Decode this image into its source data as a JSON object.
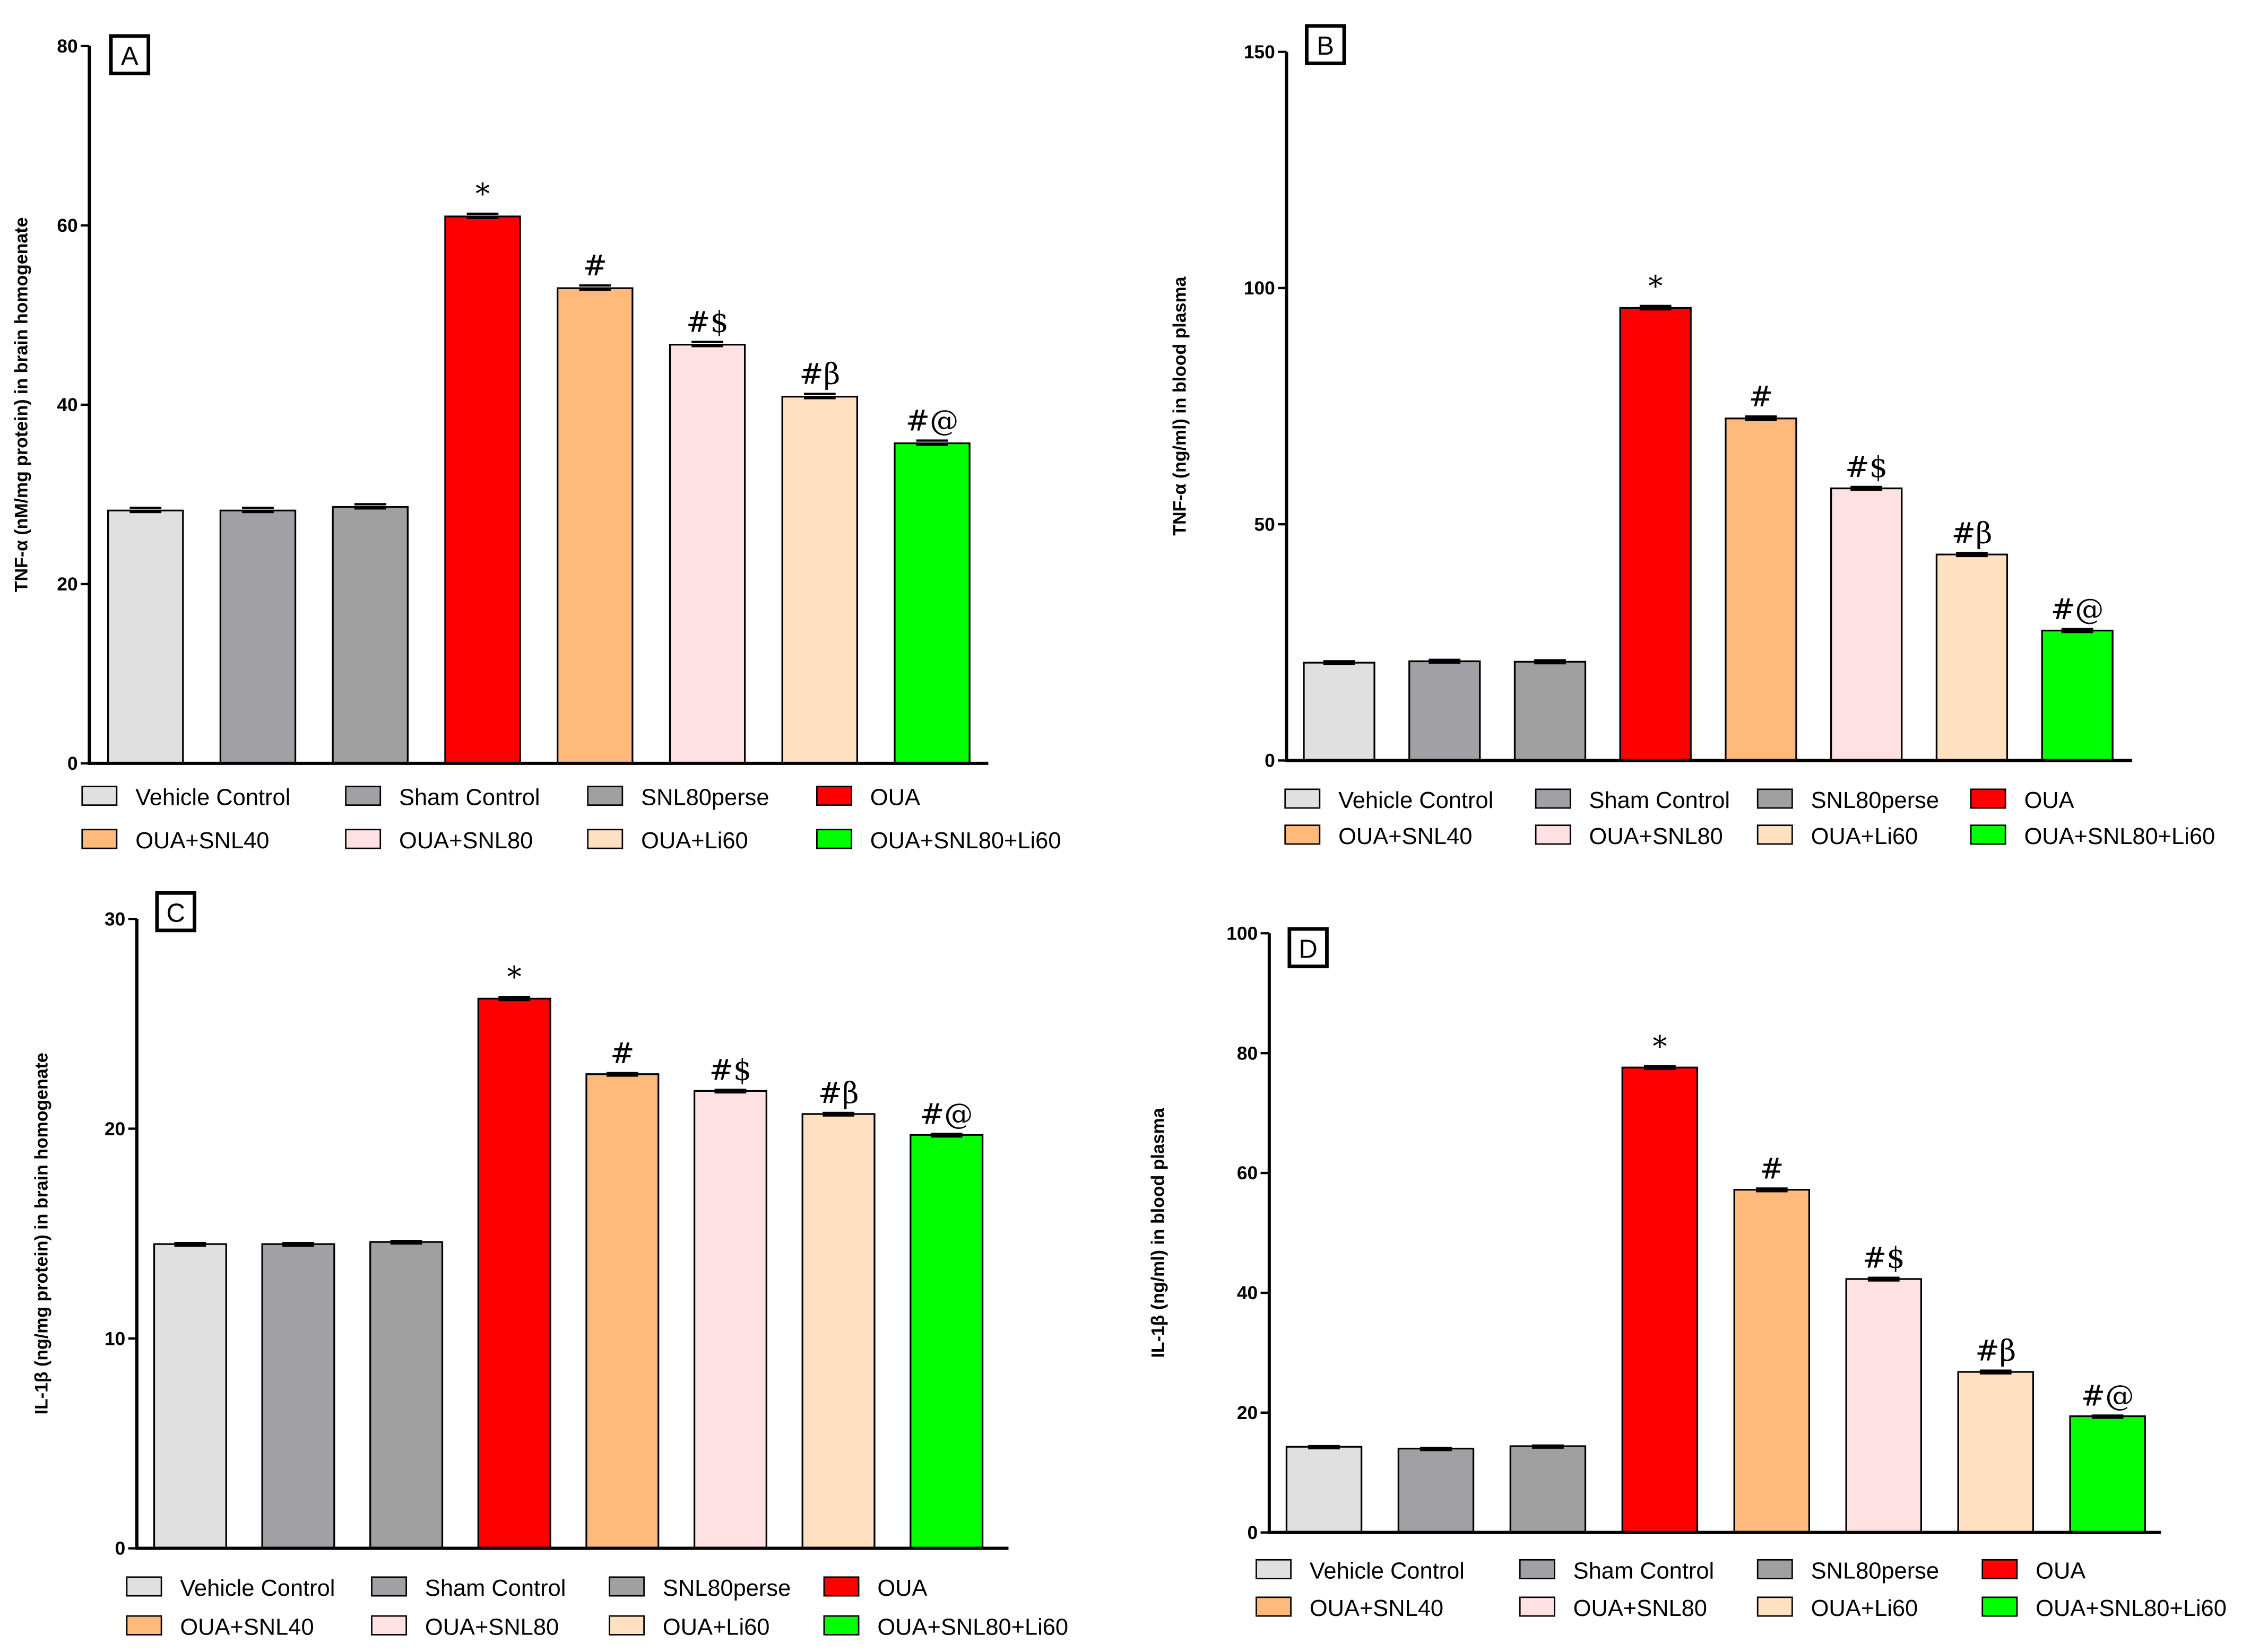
{
  "chart_data": [
    {
      "type": "bar",
      "panel_label": "A",
      "title": "",
      "xlabel": "",
      "ylabel": "TNF-α (nM/mg protein) in brain homogenate",
      "ylim": [
        0,
        80
      ],
      "yticks": [
        "0",
        "20",
        "40",
        "60",
        "80"
      ],
      "ytick_values": [
        0,
        20,
        40,
        60,
        80
      ],
      "categories": [
        "Vehicle Control",
        "Sham Control",
        "SNL80perse",
        "OUA",
        "OUA+SNL40",
        "OUA+SNL80",
        "OUA+Li60",
        "OUA+SNL80+Li60"
      ],
      "values": [
        28.2,
        28.2,
        28.6,
        61.0,
        53.0,
        46.7,
        40.9,
        35.7
      ],
      "errors": [
        0.3,
        0.3,
        0.3,
        0.3,
        0.3,
        0.3,
        0.3,
        0.3
      ],
      "annotations": [
        "",
        "",
        "",
        "*",
        "#",
        "#$",
        "#β",
        "#@"
      ],
      "legend_position": "bottom",
      "grid": false
    },
    {
      "type": "bar",
      "panel_label": "B",
      "title": "",
      "xlabel": "",
      "ylabel": "TNF-α (ng/ml) in blood plasma",
      "ylim": [
        0,
        150
      ],
      "yticks": [
        "0",
        "50",
        "100",
        "150"
      ],
      "ytick_values": [
        0,
        50,
        100,
        150
      ],
      "categories": [
        "Vehicle Control",
        "Sham Control",
        "SNL80perse",
        "OUA",
        "OUA+SNL40",
        "OUA+SNL80",
        "OUA+Li60",
        "OUA+SNL80+Li60"
      ],
      "values": [
        20.7,
        21.0,
        20.9,
        95.8,
        72.4,
        57.6,
        43.6,
        27.5
      ],
      "errors": [
        0.3,
        0.3,
        0.3,
        0.4,
        0.4,
        0.3,
        0.3,
        0.3
      ],
      "annotations": [
        "",
        "",
        "",
        "*",
        "#",
        "#$",
        "#β",
        "#@"
      ],
      "legend_position": "bottom",
      "grid": false
    },
    {
      "type": "bar",
      "panel_label": "C",
      "title": "",
      "xlabel": "",
      "ylabel": "IL-1β (ng/mg protein) in brain homogenate",
      "ylim": [
        0,
        30
      ],
      "yticks": [
        "0",
        "10",
        "20",
        "30"
      ],
      "ytick_values": [
        0,
        10,
        20,
        30
      ],
      "categories": [
        "Vehicle Control",
        "Sham Control",
        "SNL80perse",
        "OUA",
        "OUA+SNL40",
        "OUA+SNL80",
        "OUA+Li60",
        "OUA+SNL80+Li60"
      ],
      "values": [
        14.5,
        14.5,
        14.6,
        26.2,
        22.6,
        21.8,
        20.7,
        19.7
      ],
      "errors": [
        0.05,
        0.05,
        0.05,
        0.08,
        0.05,
        0.05,
        0.05,
        0.05
      ],
      "annotations": [
        "",
        "",
        "",
        "*",
        "#",
        "#$",
        "#β",
        "#@"
      ],
      "legend_position": "bottom",
      "grid": false
    },
    {
      "type": "bar",
      "panel_label": "D",
      "title": "",
      "xlabel": "",
      "ylabel": "IL-1β (ng/ml) in blood plasma",
      "ylim": [
        0,
        100
      ],
      "yticks": [
        "0",
        "20",
        "40",
        "60",
        "80",
        "100"
      ],
      "ytick_values": [
        0,
        20,
        40,
        60,
        80,
        100
      ],
      "categories": [
        "Vehicle Control",
        "Sham Control",
        "SNL80perse",
        "OUA",
        "OUA+SNL40",
        "OUA+SNL80",
        "OUA+Li60",
        "OUA+SNL80+Li60"
      ],
      "values": [
        14.3,
        14.0,
        14.4,
        77.6,
        57.2,
        42.3,
        26.8,
        19.4
      ],
      "errors": [
        0.1,
        0.1,
        0.1,
        0.2,
        0.2,
        0.2,
        0.2,
        0.1
      ],
      "annotations": [
        "",
        "",
        "",
        "*",
        "#",
        "#$",
        "#β",
        "#@"
      ],
      "legend_position": "bottom",
      "grid": false
    }
  ],
  "colors": [
    "#e0e0e0",
    "#a1a1a5",
    "#a0a0a0",
    "#ff0000",
    "#ffb97a",
    "#ffe0e3",
    "#ffe0c0",
    "#00ff00"
  ]
}
